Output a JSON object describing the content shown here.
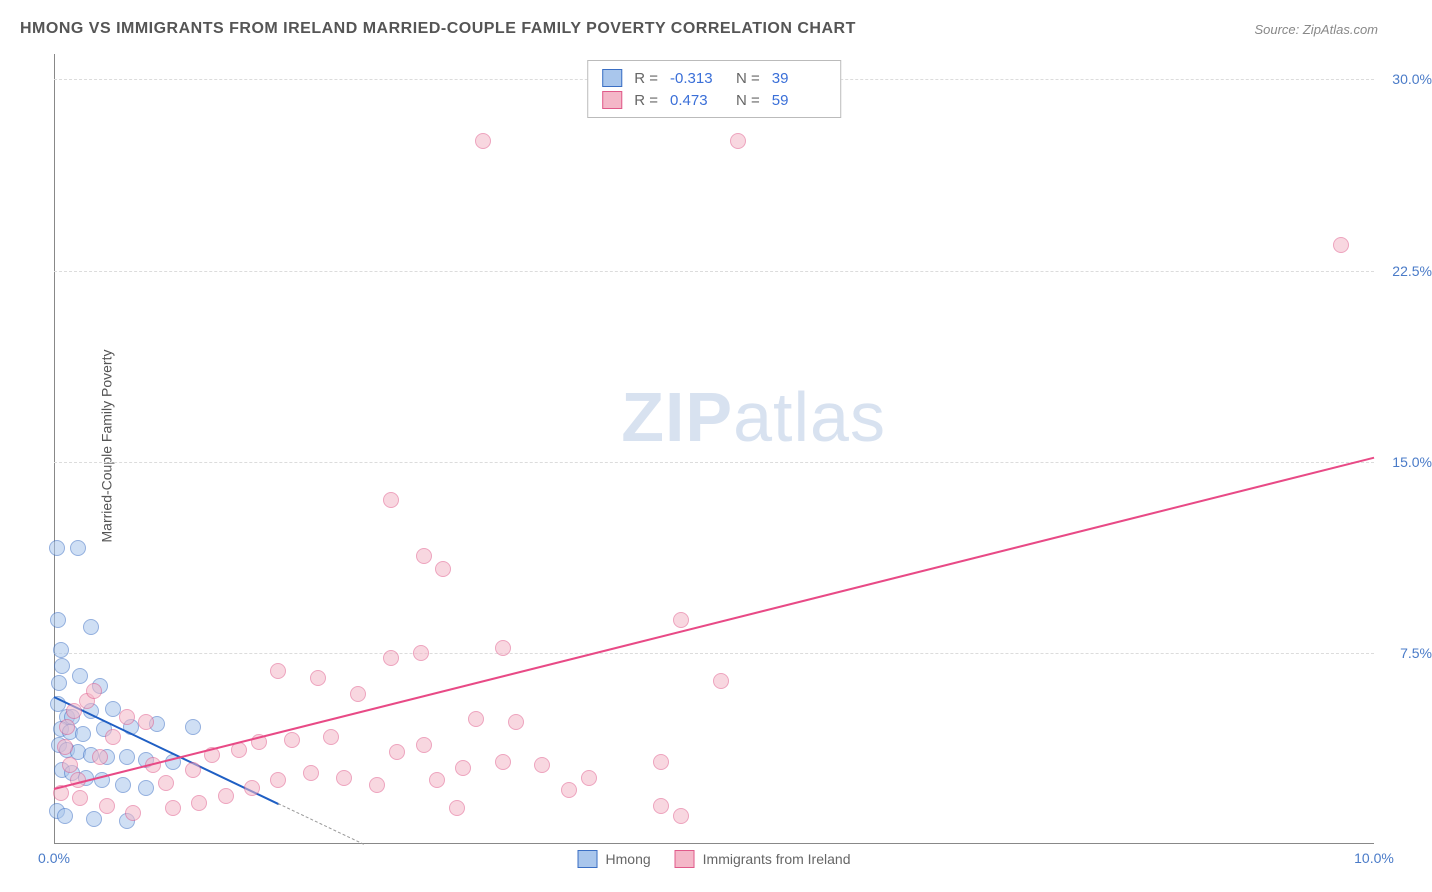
{
  "title": "HMONG VS IMMIGRANTS FROM IRELAND MARRIED-COUPLE FAMILY POVERTY CORRELATION CHART",
  "source": "Source: ZipAtlas.com",
  "watermark_bold": "ZIP",
  "watermark_rest": "atlas",
  "y_axis_label": "Married-Couple Family Poverty",
  "chart": {
    "type": "scatter",
    "xlim": [
      0,
      10
    ],
    "ylim": [
      0,
      31
    ],
    "x_ticks": [
      {
        "v": 0,
        "label": "0.0%"
      },
      {
        "v": 10,
        "label": "10.0%"
      }
    ],
    "y_ticks": [
      {
        "v": 7.5,
        "label": "7.5%"
      },
      {
        "v": 15.0,
        "label": "15.0%"
      },
      {
        "v": 22.5,
        "label": "22.5%"
      },
      {
        "v": 30.0,
        "label": "30.0%"
      }
    ],
    "grid_color": "#dcdcdc",
    "background_color": "#ffffff",
    "marker_radius": 8,
    "series": [
      {
        "name": "Hmong",
        "fill": "#a9c6ec",
        "stroke": "#3b6fc4",
        "fill_opacity": 0.55,
        "r": -0.313,
        "n": 39,
        "trend": {
          "x1": 0,
          "y1": 5.8,
          "x2": 1.7,
          "y2": 1.6,
          "color": "#1f5fc4"
        },
        "trend_ext": {
          "x1": 1.7,
          "y1": 1.6,
          "x2": 2.35,
          "y2": 0
        },
        "points": [
          [
            0.02,
            11.6
          ],
          [
            0.18,
            11.6
          ],
          [
            0.03,
            8.8
          ],
          [
            0.28,
            8.5
          ],
          [
            0.05,
            7.6
          ],
          [
            0.06,
            7.0
          ],
          [
            0.04,
            6.3
          ],
          [
            0.2,
            6.6
          ],
          [
            0.35,
            6.2
          ],
          [
            0.03,
            5.5
          ],
          [
            0.1,
            5.0
          ],
          [
            0.14,
            5.0
          ],
          [
            0.28,
            5.2
          ],
          [
            0.45,
            5.3
          ],
          [
            0.05,
            4.5
          ],
          [
            0.12,
            4.4
          ],
          [
            0.22,
            4.3
          ],
          [
            0.38,
            4.5
          ],
          [
            0.58,
            4.6
          ],
          [
            0.78,
            4.7
          ],
          [
            1.05,
            4.6
          ],
          [
            0.04,
            3.9
          ],
          [
            0.1,
            3.7
          ],
          [
            0.18,
            3.6
          ],
          [
            0.28,
            3.5
          ],
          [
            0.4,
            3.4
          ],
          [
            0.55,
            3.4
          ],
          [
            0.7,
            3.3
          ],
          [
            0.9,
            3.2
          ],
          [
            0.06,
            2.9
          ],
          [
            0.14,
            2.8
          ],
          [
            0.24,
            2.6
          ],
          [
            0.36,
            2.5
          ],
          [
            0.52,
            2.3
          ],
          [
            0.7,
            2.2
          ],
          [
            0.02,
            1.3
          ],
          [
            0.08,
            1.1
          ],
          [
            0.3,
            1.0
          ],
          [
            0.55,
            0.9
          ]
        ]
      },
      {
        "name": "Immigrants from Ireland",
        "fill": "#f4b7c8",
        "stroke": "#e05a8a",
        "fill_opacity": 0.55,
        "r": 0.473,
        "n": 59,
        "trend": {
          "x1": 0,
          "y1": 2.2,
          "x2": 10,
          "y2": 15.2,
          "color": "#e84a86"
        },
        "points": [
          [
            3.25,
            27.6
          ],
          [
            5.18,
            27.6
          ],
          [
            9.75,
            23.5
          ],
          [
            2.55,
            13.5
          ],
          [
            2.8,
            11.3
          ],
          [
            2.95,
            10.8
          ],
          [
            3.9,
            2.1
          ],
          [
            3.05,
            1.4
          ],
          [
            4.6,
            1.5
          ],
          [
            4.75,
            1.1
          ],
          [
            4.05,
            2.6
          ],
          [
            4.6,
            3.2
          ],
          [
            2.55,
            7.3
          ],
          [
            2.78,
            7.5
          ],
          [
            3.4,
            7.7
          ],
          [
            4.75,
            8.8
          ],
          [
            5.05,
            6.4
          ],
          [
            3.2,
            4.9
          ],
          [
            3.5,
            4.8
          ],
          [
            3.1,
            3.0
          ],
          [
            3.4,
            3.2
          ],
          [
            3.7,
            3.1
          ],
          [
            2.9,
            2.5
          ],
          [
            2.2,
            2.6
          ],
          [
            2.45,
            2.3
          ],
          [
            1.7,
            2.5
          ],
          [
            1.95,
            2.8
          ],
          [
            1.55,
            4.0
          ],
          [
            1.8,
            4.1
          ],
          [
            2.1,
            4.2
          ],
          [
            1.2,
            3.5
          ],
          [
            1.4,
            3.7
          ],
          [
            1.05,
            2.9
          ],
          [
            0.75,
            3.1
          ],
          [
            0.85,
            2.4
          ],
          [
            0.55,
            5.0
          ],
          [
            0.7,
            4.8
          ],
          [
            0.45,
            4.2
          ],
          [
            0.35,
            3.4
          ],
          [
            0.25,
            5.6
          ],
          [
            0.3,
            6.0
          ],
          [
            0.15,
            5.2
          ],
          [
            0.1,
            4.6
          ],
          [
            0.08,
            3.8
          ],
          [
            0.12,
            3.1
          ],
          [
            0.18,
            2.5
          ],
          [
            0.05,
            2.0
          ],
          [
            0.2,
            1.8
          ],
          [
            0.4,
            1.5
          ],
          [
            0.6,
            1.2
          ],
          [
            0.9,
            1.4
          ],
          [
            1.1,
            1.6
          ],
          [
            1.3,
            1.9
          ],
          [
            1.5,
            2.2
          ],
          [
            1.7,
            6.8
          ],
          [
            2.0,
            6.5
          ],
          [
            2.3,
            5.9
          ],
          [
            2.6,
            3.6
          ],
          [
            2.8,
            3.9
          ]
        ]
      }
    ],
    "stats_box": {
      "r_label": "R =",
      "n_label": "N ="
    }
  },
  "legend": {
    "items": [
      "Hmong",
      "Immigrants from Ireland"
    ]
  }
}
